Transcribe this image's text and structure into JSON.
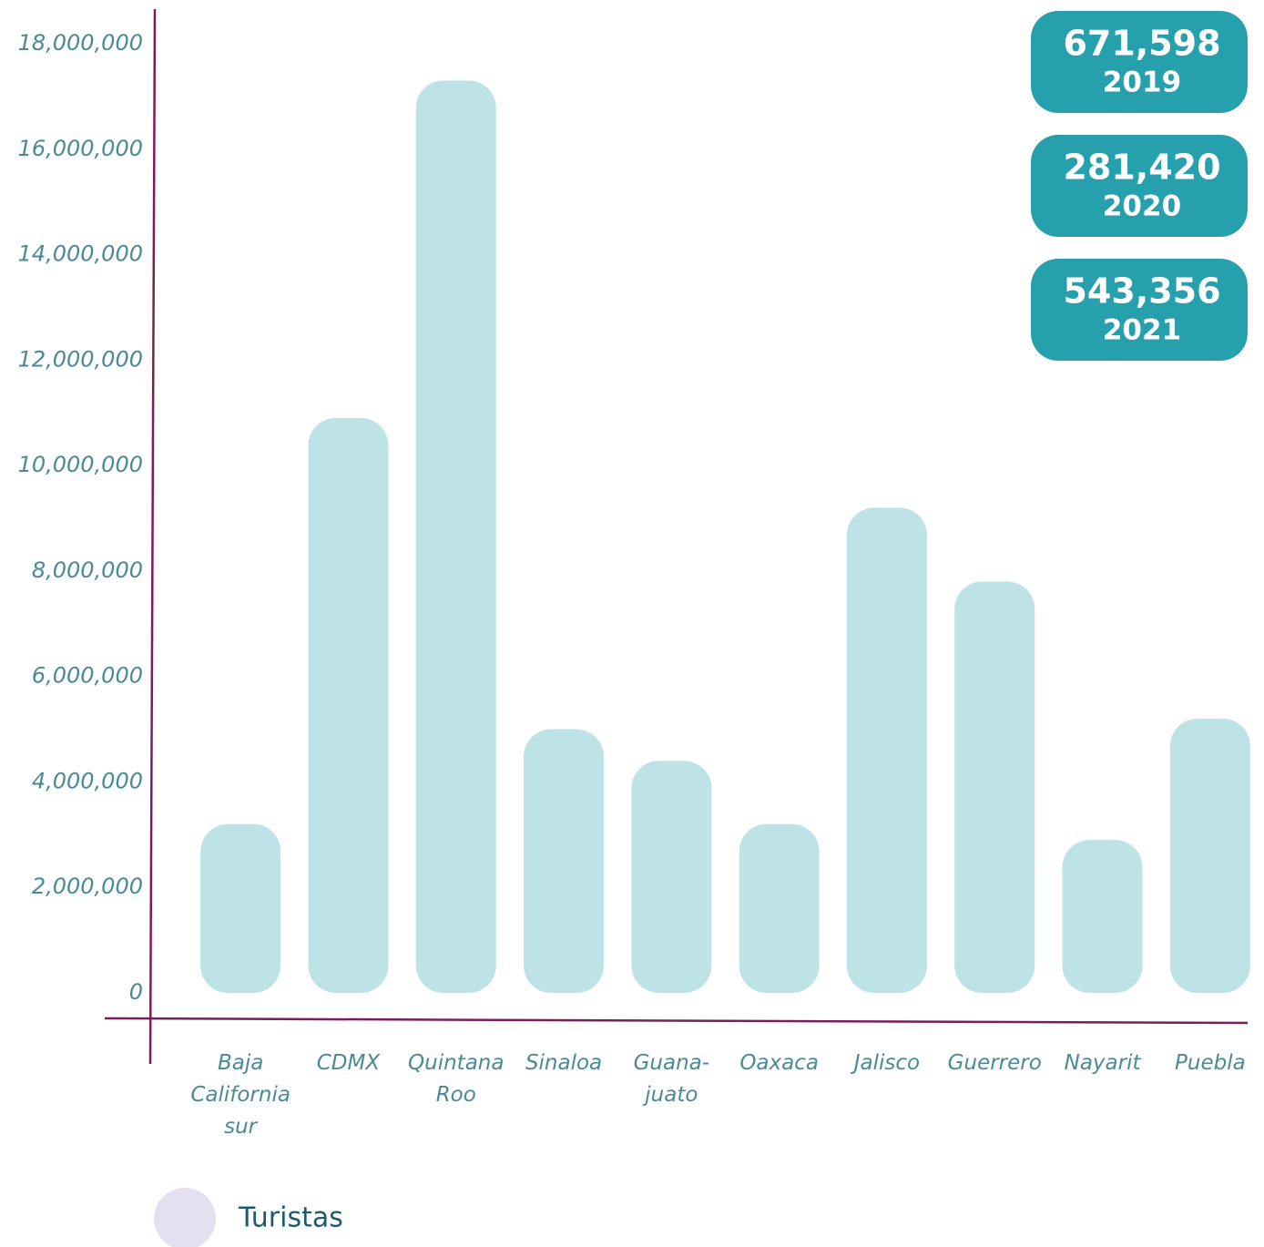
{
  "chart_data": {
    "type": "bar",
    "categories": [
      "Baja California sur",
      "CDMX",
      "Quintana Roo",
      "Sinaloa",
      "Guana-juato",
      "Oaxaca",
      "Jalisco",
      "Guerrero",
      "Nayarit",
      "Puebla"
    ],
    "series": [
      {
        "name": "Turistas",
        "color": "#bde3e7",
        "values": [
          3200000,
          10900000,
          17300000,
          5000000,
          4400000,
          3200000,
          9200000,
          7800000,
          2900000,
          5200000
        ]
      }
    ],
    "legend_color": "#e4e0ef",
    "ylim": [
      0,
      18000000
    ],
    "yticks": [
      {
        "value": 0,
        "label": "0"
      },
      {
        "value": 2000000,
        "label": "2,000,000"
      },
      {
        "value": 4000000,
        "label": "4,000,000"
      },
      {
        "value": 6000000,
        "label": "6,000,000"
      },
      {
        "value": 8000000,
        "label": "8,000,000"
      },
      {
        "value": 10000000,
        "label": "10,000,000"
      },
      {
        "value": 12000000,
        "label": "12,000,000"
      },
      {
        "value": 14000000,
        "label": "14,000,000"
      },
      {
        "value": 16000000,
        "label": "16,000,000"
      },
      {
        "value": 18000000,
        "label": "18,000,000"
      }
    ],
    "stats": [
      {
        "value": "671,598",
        "year": "2019"
      },
      {
        "value": "281,420",
        "year": "2020"
      },
      {
        "value": "543,356",
        "year": "2021"
      }
    ]
  }
}
